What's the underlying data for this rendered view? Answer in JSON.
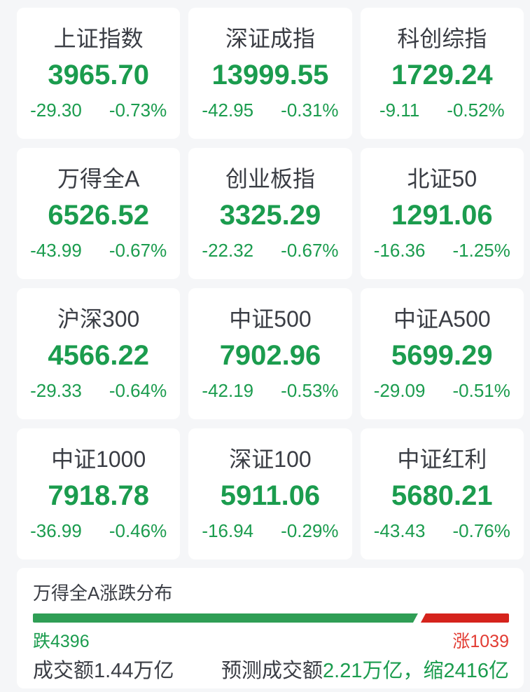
{
  "colors": {
    "page_bg": "#f5f6f8",
    "card_bg": "#ffffff",
    "text_dark": "#3a3d44",
    "green": "#1b9c4e",
    "red": "#e23b32",
    "bar_green": "#2f9e55",
    "bar_red": "#d5231c"
  },
  "indices": [
    {
      "name": "上证指数",
      "value": "3965.70",
      "change": "-29.30",
      "pct": "-0.73%"
    },
    {
      "name": "深证成指",
      "value": "13999.55",
      "change": "-42.95",
      "pct": "-0.31%"
    },
    {
      "name": "科创综指",
      "value": "1729.24",
      "change": "-9.11",
      "pct": "-0.52%"
    },
    {
      "name": "万得全A",
      "value": "6526.52",
      "change": "-43.99",
      "pct": "-0.67%"
    },
    {
      "name": "创业板指",
      "value": "3325.29",
      "change": "-22.32",
      "pct": "-0.67%"
    },
    {
      "name": "北证50",
      "value": "1291.06",
      "change": "-16.36",
      "pct": "-1.25%"
    },
    {
      "name": "沪深300",
      "value": "4566.22",
      "change": "-29.33",
      "pct": "-0.64%"
    },
    {
      "name": "中证500",
      "value": "7902.96",
      "change": "-42.19",
      "pct": "-0.53%"
    },
    {
      "name": "中证A500",
      "value": "5699.29",
      "change": "-29.09",
      "pct": "-0.51%"
    },
    {
      "name": "中证1000",
      "value": "7918.78",
      "change": "-36.99",
      "pct": "-0.46%"
    },
    {
      "name": "深证100",
      "value": "5911.06",
      "change": "-16.94",
      "pct": "-0.29%"
    },
    {
      "name": "中证红利",
      "value": "5680.21",
      "change": "-43.43",
      "pct": "-0.76%"
    }
  ],
  "distribution": {
    "title": "万得全A涨跌分布",
    "fall_label": "跌4396",
    "rise_label": "涨1039",
    "fall_count": 4396,
    "rise_count": 1039,
    "turnover": "成交额1.44万亿",
    "forecast_prefix": "预测成交额",
    "forecast_value": "2.21万亿，缩2416亿"
  }
}
